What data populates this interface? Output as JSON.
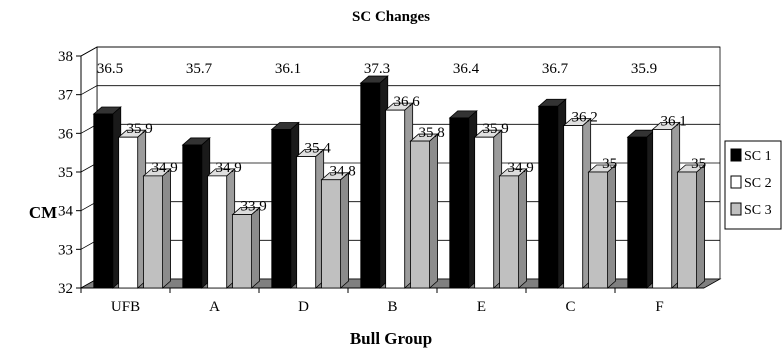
{
  "chart_data": {
    "type": "bar",
    "title": "SC Changes",
    "xlabel": "Bull Group",
    "ylabel": "CM",
    "categories": [
      "UFB",
      "A",
      "D",
      "B",
      "E",
      "C",
      "F"
    ],
    "ylim": [
      32,
      38
    ],
    "yticks": [
      "32",
      "33",
      "34",
      "35",
      "36",
      "37",
      "38"
    ],
    "grid": true,
    "legend_position": "right",
    "style": "3d",
    "series": [
      {
        "name": "SC 1",
        "color": "#000000",
        "values": [
          36.5,
          35.7,
          36.1,
          37.3,
          36.4,
          36.7,
          35.9
        ],
        "labels": [
          "36.5",
          "35.7",
          "36.1",
          "37.3",
          "36.4",
          "36.7",
          "35.9"
        ]
      },
      {
        "name": "SC 2",
        "color": "#ffffff",
        "values": [
          35.9,
          34.9,
          35.4,
          36.6,
          35.9,
          36.2,
          36.1
        ],
        "labels": [
          "35.9",
          "34.9",
          "35.4",
          "36.6",
          "35.9",
          "36.2",
          "36.1"
        ]
      },
      {
        "name": "SC 3",
        "color": "#c0c0c0",
        "values": [
          34.9,
          33.9,
          34.8,
          35.8,
          34.9,
          35,
          35
        ],
        "labels": [
          "34.9",
          "33.9",
          "34.8",
          "35.8",
          "34.9",
          "35",
          "35"
        ]
      }
    ]
  }
}
